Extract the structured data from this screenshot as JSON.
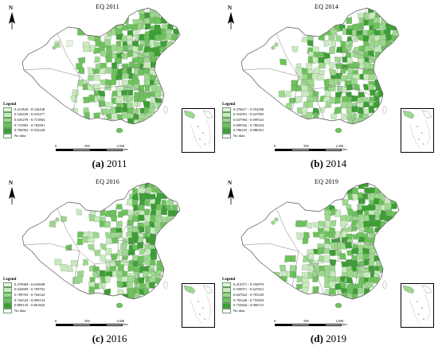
{
  "north_label": "N",
  "scale": {
    "labels": [
      "0",
      "500",
      "1,000"
    ],
    "unit": "km"
  },
  "legend_title": "Legend",
  "no_data_label": "No data",
  "colors": {
    "class_1": "#e6f6e0",
    "class_2": "#c7ebbc",
    "class_3": "#9cd98d",
    "class_4": "#6cc35b",
    "class_5": "#3ba033",
    "no_data": "#ffffff",
    "boundary": "#7f7f7f"
  },
  "panels": [
    {
      "title": "EQ 2011",
      "caption_letter": "(a)",
      "caption_year": "2011",
      "legend": [
        "0.411820 - 0.526438",
        "0.526439 - 0.633277",
        "0.633278 - 0.715864",
        "0.715865 - 0.782901",
        "0.782902 - 0.932249"
      ]
    },
    {
      "title": "EQ 2014",
      "caption_letter": "(b)",
      "caption_year": "2014",
      "legend": [
        "0.370617 - 0.554590",
        "0.554591 - 0.637903",
        "0.637904 - 0.699341",
        "0.699342 - 0.786254",
        "0.786255 - 0.880561"
      ]
    },
    {
      "title": "EQ 2016",
      "caption_letter": "(c)",
      "caption_year": "2016",
      "legend": [
        "0.479969 - 0.633698",
        "0.633699 - 0.709762",
        "0.709763 - 0.764542",
        "0.764543 - 0.809134",
        "0.809135 - 0.861820"
      ]
    },
    {
      "title": "EQ 2019",
      "caption_letter": "(d)",
      "caption_year": "2019",
      "legend": [
        "0.413971 - 0.550970",
        "0.550971 - 0.647821",
        "0.647822 - 0.705345",
        "0.705346 - 0.755843",
        "0.755844 - 0.906731"
      ]
    }
  ]
}
